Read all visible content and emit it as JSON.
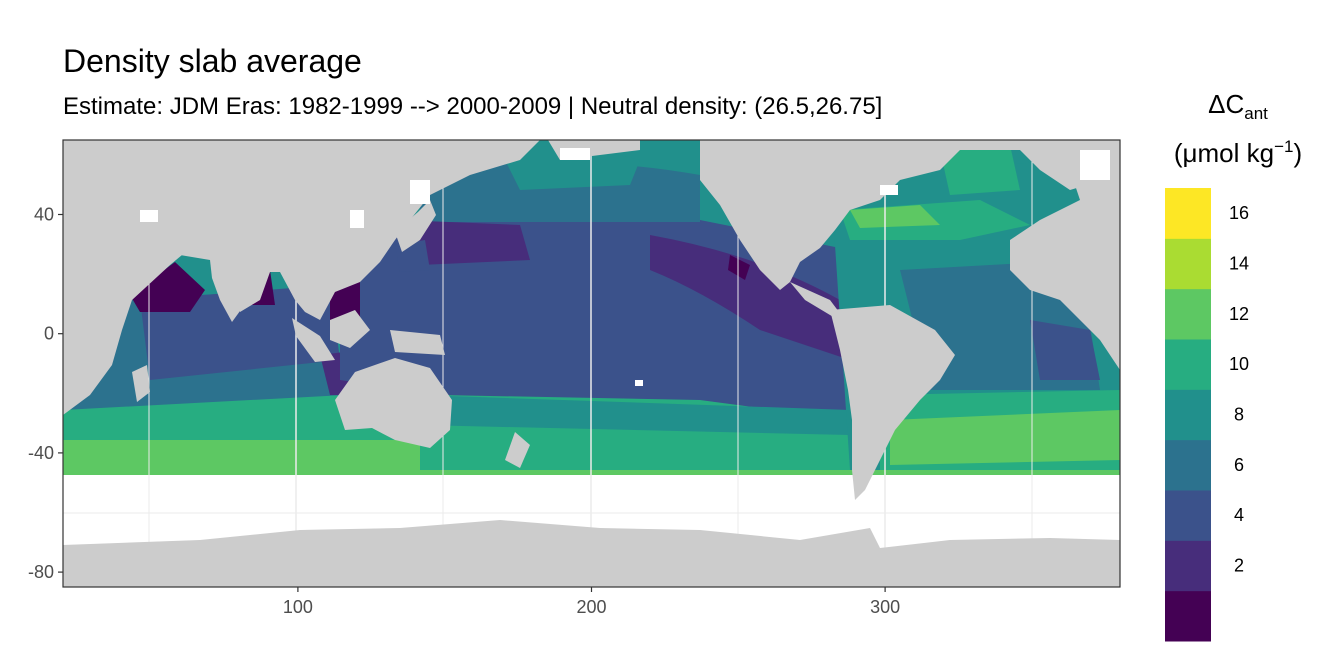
{
  "title": "Density slab average",
  "subtitle": "Estimate: JDM Eras: 1982-1999 --> 2000-2009 | Neutral density: (26.5,26.75]",
  "legend": {
    "title_line1_main": "ΔC",
    "title_line1_sub": "ant",
    "title_line2_main": "(μmol kg",
    "title_line2_sup": "−1",
    "title_line2_end": ")",
    "bins": [
      {
        "label": "",
        "color": "#440154"
      },
      {
        "label": "2",
        "color": "#472D7B"
      },
      {
        "label": "4",
        "color": "#3B528B"
      },
      {
        "label": "6",
        "color": "#2C728E"
      },
      {
        "label": "8",
        "color": "#21908C"
      },
      {
        "label": "10",
        "color": "#27AD81"
      },
      {
        "label": "12",
        "color": "#5DC863"
      },
      {
        "label": "14",
        "color": "#AADC32"
      },
      {
        "label": "16",
        "color": "#FDE725"
      }
    ]
  },
  "chart_data": {
    "type": "heatmap",
    "title": "Density slab average",
    "subtitle": "Estimate: JDM Eras: 1982-1999 --> 2000-2009 | Neutral density: (26.5,26.75]",
    "xlabel": "",
    "ylabel": "",
    "xlim": [
      20,
      380
    ],
    "ylim": [
      -85,
      65
    ],
    "x_ticks": [
      100,
      200,
      300
    ],
    "y_ticks": [
      40,
      0,
      -40,
      -80
    ],
    "grid": true,
    "legend_position": "right",
    "colorbar_label": "ΔCant (μmol kg−1)",
    "colorbar_breaks": [
      2,
      4,
      6,
      8,
      10,
      12,
      14,
      16
    ],
    "land_color": "#cccccc",
    "ocean_data_southern_limit": -45
  }
}
